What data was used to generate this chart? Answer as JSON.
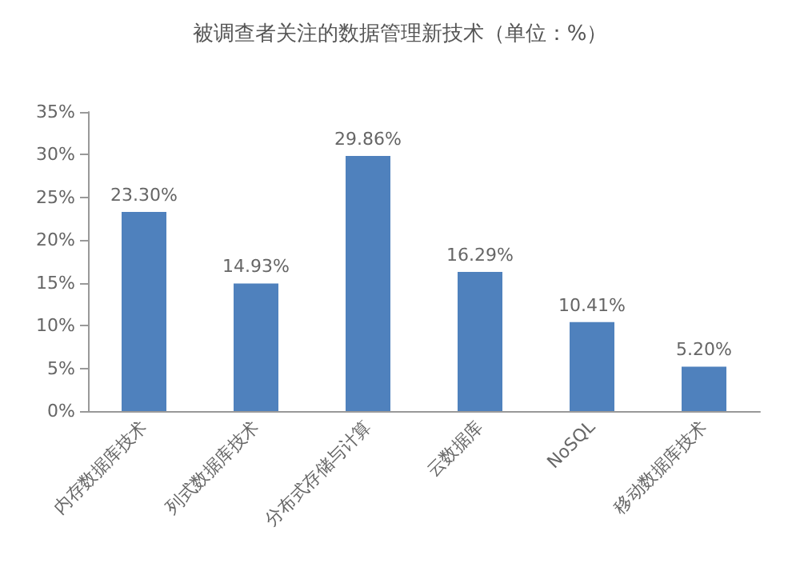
{
  "chart_data": {
    "type": "bar",
    "title": "被调查者关注的数据管理新技术（单位：%）",
    "categories": [
      "内存数据库技术",
      "列式数据库技术",
      "分布式存储与计算",
      "云数据库",
      "NoSQL",
      "移动数据库技术"
    ],
    "values": [
      23.3,
      14.93,
      29.86,
      16.29,
      10.41,
      5.2
    ],
    "value_labels": [
      "23.30%",
      "14.93%",
      "29.86%",
      "16.29%",
      "10.41%",
      "5.20%"
    ],
    "color": "#4f81bd",
    "ylim": [
      0,
      35
    ],
    "yticks": [
      {
        "value": 0,
        "label": "0%"
      },
      {
        "value": 5,
        "label": "5%"
      },
      {
        "value": 10,
        "label": "10%"
      },
      {
        "value": 15,
        "label": "15%"
      },
      {
        "value": 20,
        "label": "20%"
      },
      {
        "value": 25,
        "label": "25%"
      },
      {
        "value": 30,
        "label": "30%"
      },
      {
        "value": 35,
        "label": "35%"
      }
    ],
    "grid": false
  }
}
